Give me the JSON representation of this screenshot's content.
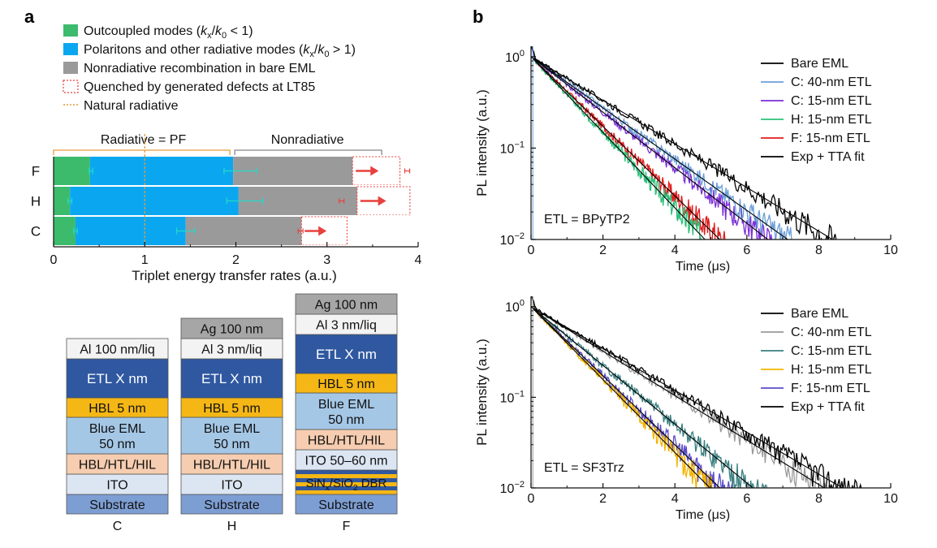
{
  "panel_labels": {
    "a": "a",
    "b": "b"
  },
  "colors": {
    "outcoupled": "#3dbb6c",
    "polariton": "#0aa7f0",
    "nonrad": "#9a9a9a",
    "quenched": "#e8403c",
    "natural": "#e69a3a",
    "err_cyan": "#26d6c6",
    "etl": "#2f58a0",
    "hbl5": "#f5b715",
    "eml": "#a5c7e6",
    "hbl_htl": "#f6cdb0",
    "ito": "#dce6f3",
    "substrate": "#7d9ed3",
    "ag": "#a6a6a6",
    "al": "#f3f3f3",
    "dbr_dark": "#2f58a0",
    "dbr_light": "#f5b715"
  },
  "legend_a": [
    {
      "key": "outcoupled",
      "prefix": "Outcoupled modes (",
      "k1": "k",
      "s1": "x",
      "mid": "/",
      "k2": "k",
      "s2": "0",
      "suffix": " < 1)"
    },
    {
      "key": "polariton",
      "prefix": "Polaritons and other radiative modes (",
      "k1": "k",
      "s1": "x",
      "mid": "/",
      "k2": "k",
      "s2": "0",
      "suffix": " > 1)"
    },
    {
      "key": "nonrad",
      "text": "Nonradiative recombination in bare EML"
    },
    {
      "key": "quenched",
      "text": "Quenched by generated defects at LT85"
    },
    {
      "key": "natural",
      "text": "Natural radiative"
    }
  ],
  "chart_data": [
    {
      "type": "bar",
      "orientation": "horizontal-stacked",
      "categories": [
        "F",
        "H",
        "C"
      ],
      "series": [
        {
          "name": "Outcoupled modes",
          "values": [
            0.4,
            0.18,
            0.24
          ]
        },
        {
          "name": "Polaritons and other radiative modes",
          "values": [
            1.57,
            1.85,
            1.21
          ]
        },
        {
          "name": "Nonradiative recombination in bare EML",
          "values": [
            1.31,
            1.3,
            1.27
          ]
        },
        {
          "name": "Quenched by generated defects at LT85",
          "values": [
            0.52,
            0.58,
            0.5
          ]
        }
      ],
      "error_cyan": [
        {
          "center": 0.41,
          "err": 0.02
        },
        {
          "center": 2.05,
          "err": 0.18
        },
        {
          "center": 0.18,
          "err": 0.02
        },
        {
          "center": 2.1,
          "err": 0.2
        },
        {
          "center": 0.24,
          "err": 0.02
        },
        {
          "center": 1.45,
          "err": 0.1
        }
      ],
      "error_end": [
        3.88,
        3.98,
        3.16,
        3.28,
        2.71,
        3.27
      ],
      "natural_radiative": 1.0,
      "brackets": {
        "radiative": "Radiative = PF",
        "nonradiative": "Nonradiative",
        "split": 1.97
      },
      "xlim": [
        0,
        4
      ],
      "xticks": [
        "0",
        "1",
        "2",
        "3",
        "4"
      ],
      "xlabel": "Triplet energy transfer rates (a.u.)"
    },
    {
      "type": "line",
      "yscale": "log",
      "title": "ETL = BPyTP2",
      "xlabel": "Time (μs)",
      "ylabel": "PL intensity (a.u.)",
      "xlim": [
        0,
        10
      ],
      "ylim": [
        0.01,
        1.3
      ],
      "xticks": [
        "0",
        "2",
        "4",
        "6",
        "8",
        "10"
      ],
      "ytick_base": "10",
      "yticks_exp": [
        "0",
        "−1",
        "−2"
      ],
      "series": [
        {
          "name": "Bare EML",
          "color": "#000000",
          "decay_time": 1.82,
          "end": 9.9
        },
        {
          "name": "C: 40-nm ETL",
          "color": "#6b9fd8",
          "decay_time": 1.55,
          "end": 7.3
        },
        {
          "name": "C: 15-nm ETL",
          "color": "#7a2fd6",
          "decay_time": 1.43,
          "end": 6.7
        },
        {
          "name": "H: 15-nm ETL",
          "color": "#2fc07a",
          "decay_time": 1.05,
          "end": 5.0
        },
        {
          "name": "F: 15-nm ETL",
          "color": "#e01c1c",
          "decay_time": 1.14,
          "end": 5.5
        },
        {
          "name": "Exp + TTA fit",
          "color": "#000000",
          "fit": true
        }
      ]
    },
    {
      "type": "line",
      "yscale": "log",
      "title": "ETL = SF3Trz",
      "xlabel": "Time (μs)",
      "ylabel": "PL intensity (a.u.)",
      "xlim": [
        0,
        10
      ],
      "ylim": [
        0.01,
        1.3
      ],
      "xticks": [
        "0",
        "2",
        "4",
        "6",
        "8",
        "10"
      ],
      "ytick_base": "10",
      "yticks_exp": [
        "0",
        "−1",
        "−2"
      ],
      "series": [
        {
          "name": "Bare EML",
          "color": "#000000",
          "decay_time": 1.88,
          "end": 9.6
        },
        {
          "name": "C: 40-nm ETL",
          "color": "#9a9a9a",
          "decay_time": 1.77,
          "end": 9.2
        },
        {
          "name": "C: 15-nm ETL",
          "color": "#3a7f80",
          "decay_time": 1.34,
          "end": 7.0
        },
        {
          "name": "H: 15-nm ETL",
          "color": "#f2b400",
          "decay_time": 1.08,
          "end": 5.5
        },
        {
          "name": "F: 15-nm ETL",
          "color": "#5a4cc8",
          "decay_time": 1.14,
          "end": 6.0
        },
        {
          "name": "Exp + TTA fit",
          "color": "#000000",
          "fit": true
        }
      ]
    }
  ],
  "stacks": [
    {
      "label": "C",
      "layers": [
        {
          "text": "Al 100 nm/liq",
          "fill": "al"
        },
        {
          "text": "ETL X nm",
          "fill": "etl",
          "light": true
        },
        {
          "text": "HBL 5 nm",
          "fill": "hbl5"
        },
        {
          "text": "Blue EML",
          "text2": "50 nm",
          "fill": "eml"
        },
        {
          "text": "HBL/HTL/HIL",
          "fill": "hbl_htl"
        },
        {
          "text": "ITO",
          "fill": "ito"
        },
        {
          "text": "Substrate",
          "fill": "substrate"
        }
      ]
    },
    {
      "label": "H",
      "layers": [
        {
          "text": "Ag 100 nm",
          "fill": "ag"
        },
        {
          "text": "Al 3 nm/liq",
          "fill": "al"
        },
        {
          "text": "ETL X nm",
          "fill": "etl",
          "light": true
        },
        {
          "text": "HBL 5 nm",
          "fill": "hbl5"
        },
        {
          "text": "Blue EML",
          "text2": "50 nm",
          "fill": "eml"
        },
        {
          "text": "HBL/HTL/HIL",
          "fill": "hbl_htl"
        },
        {
          "text": "ITO",
          "fill": "ito"
        },
        {
          "text": "Substrate",
          "fill": "substrate"
        }
      ]
    },
    {
      "label": "F",
      "layers": [
        {
          "text": "Ag 100 nm",
          "fill": "ag"
        },
        {
          "text": "Al 3 nm/liq",
          "fill": "al"
        },
        {
          "text": "ETL X nm",
          "fill": "etl",
          "light": true
        },
        {
          "text": "HBL 5 nm",
          "fill": "hbl5"
        },
        {
          "text": "Blue EML",
          "text2": "50 nm",
          "fill": "eml"
        },
        {
          "text": "HBL/HTL/HIL",
          "fill": "hbl_htl"
        },
        {
          "text": "ITO 50–60 nm",
          "fill": "ito"
        },
        {
          "dbr": true,
          "t1": "SiN",
          "s1": "x",
          "t2": "/SiO",
          "s2": "2",
          "t3": " DBR"
        },
        {
          "text": "Substrate",
          "fill": "substrate"
        }
      ]
    }
  ]
}
